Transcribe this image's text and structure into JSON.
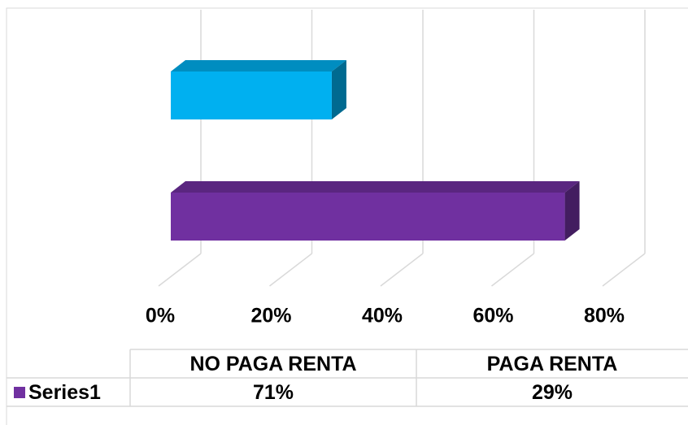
{
  "chart_data": {
    "type": "bar",
    "horizontal": true,
    "three_d": true,
    "categories": [
      "NO PAGA RENTA",
      "PAGA RENTA"
    ],
    "series": [
      {
        "name": "Series1",
        "colors": [
          "#7030a0",
          "#00b0f0"
        ],
        "values": [
          71,
          29
        ],
        "value_labels": [
          "71%",
          "29%"
        ]
      }
    ],
    "xlim": [
      0,
      80
    ],
    "xticks": [
      {
        "value": 0,
        "label": "0%"
      },
      {
        "value": 20,
        "label": "20%"
      },
      {
        "value": 40,
        "label": "40%"
      },
      {
        "value": 60,
        "label": "60%"
      },
      {
        "value": 80,
        "label": "80%"
      }
    ],
    "grid": true,
    "data_table": true
  }
}
